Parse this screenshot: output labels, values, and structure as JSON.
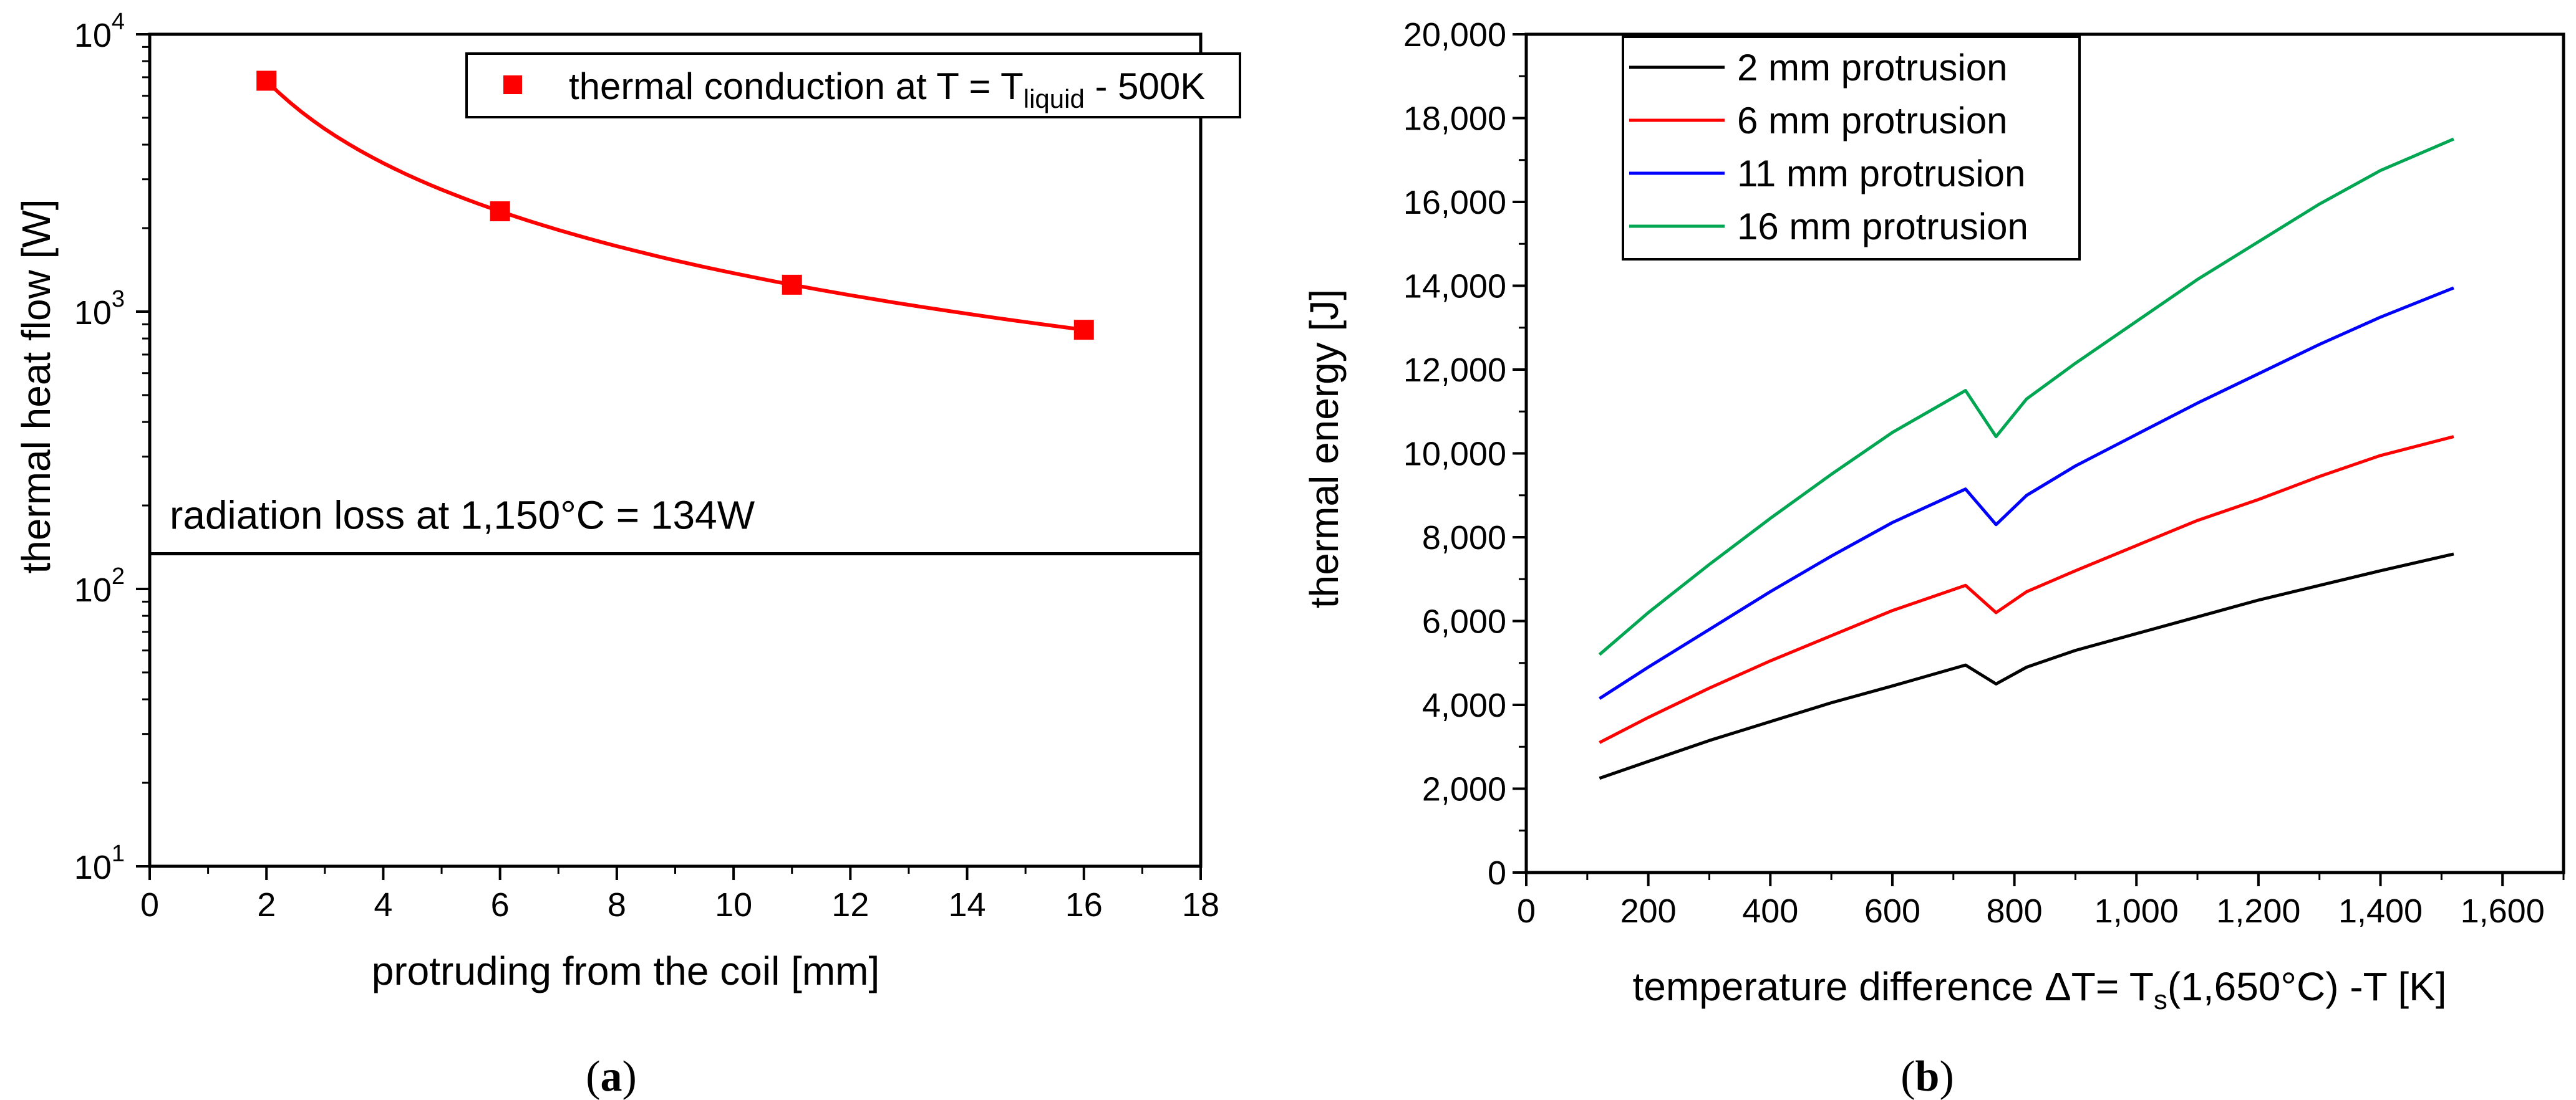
{
  "chart_data": [
    {
      "type": "scatter",
      "panel_label": "a",
      "xlabel": "protruding from the coil [mm]",
      "ylabel": "thermal heat flow [W]",
      "xlim": [
        0,
        18
      ],
      "xticks": [
        0,
        2,
        4,
        6,
        8,
        10,
        12,
        14,
        16,
        18
      ],
      "yscale": "log",
      "ylim": [
        10,
        10000
      ],
      "yticks": [
        {
          "base": "10",
          "exp": "1",
          "value": 10
        },
        {
          "base": "10",
          "exp": "2",
          "value": 100
        },
        {
          "base": "10",
          "exp": "3",
          "value": 1000
        },
        {
          "base": "10",
          "exp": "4",
          "value": 10000
        }
      ],
      "grid": false,
      "legend_position": "top-right",
      "series": [
        {
          "name_parts": {
            "pre": "thermal conduction at T = T",
            "sub": "liquid",
            "post": " - 500K"
          },
          "color": "#ff0000",
          "marker": "square",
          "fit_curve": true,
          "x": [
            2,
            6,
            11,
            16
          ],
          "y": [
            6800,
            2300,
            1250,
            860
          ]
        }
      ],
      "reference_line": {
        "label": "radiation loss at 1,150°C = 134W",
        "y": 134,
        "color": "#000000"
      }
    },
    {
      "type": "line",
      "panel_label": "b",
      "xlabel_parts": {
        "pre": "temperature difference ΔT= T",
        "sub": "s",
        "post": "(1,650°C) -T [K]"
      },
      "ylabel": "thermal energy [J]",
      "xlim": [
        0,
        1700
      ],
      "xticks": [
        "0",
        "200",
        "400",
        "600",
        "800",
        "1,000",
        "1,200",
        "1,400",
        "1,600"
      ],
      "xtick_values": [
        0,
        200,
        400,
        600,
        800,
        1000,
        1200,
        1400,
        1600
      ],
      "ylim": [
        0,
        20000
      ],
      "yticks": [
        "0",
        "2,000",
        "4,000",
        "6,000",
        "8,000",
        "10,000",
        "12,000",
        "14,000",
        "16,000",
        "18,000",
        "20,000"
      ],
      "ytick_values": [
        0,
        2000,
        4000,
        6000,
        8000,
        10000,
        12000,
        14000,
        16000,
        18000,
        20000
      ],
      "grid": false,
      "legend_position": "top-left",
      "x": [
        120,
        200,
        300,
        400,
        500,
        600,
        720,
        770,
        820,
        900,
        1000,
        1100,
        1200,
        1300,
        1400,
        1520
      ],
      "series": [
        {
          "name": "2 mm protrusion",
          "color": "#000000",
          "values": [
            2250,
            2650,
            3150,
            3600,
            4050,
            4450,
            4950,
            4500,
            4900,
            5300,
            5700,
            6100,
            6500,
            6850,
            7200,
            7600
          ]
        },
        {
          "name": "6 mm protrusion",
          "color": "#ff0000",
          "values": [
            3100,
            3700,
            4400,
            5050,
            5650,
            6250,
            6850,
            6200,
            6700,
            7200,
            7800,
            8400,
            8900,
            9450,
            9950,
            10400
          ]
        },
        {
          "name": "11 mm protrusion",
          "color": "#0000ff",
          "values": [
            4150,
            4900,
            5800,
            6700,
            7550,
            8350,
            9150,
            8300,
            9000,
            9700,
            10450,
            11200,
            11900,
            12600,
            13250,
            13950
          ]
        },
        {
          "name": "16 mm protrusion",
          "color": "#00a651",
          "values": [
            5200,
            6200,
            7350,
            8450,
            9500,
            10500,
            11500,
            10400,
            11300,
            12150,
            13150,
            14150,
            15050,
            15950,
            16750,
            17500
          ]
        }
      ]
    }
  ]
}
